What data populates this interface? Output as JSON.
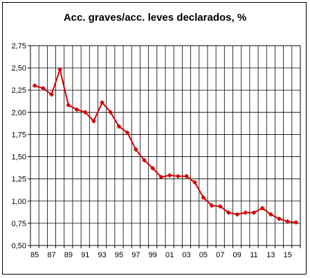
{
  "chart_data": {
    "type": "line",
    "title": "Acc. graves/acc. leves declarados, %",
    "xlabel": "",
    "ylabel": "",
    "grid": true,
    "ylim": [
      0.5,
      2.75
    ],
    "yticks": [
      0.5,
      0.75,
      1.0,
      1.25,
      1.5,
      1.75,
      2.0,
      2.25,
      2.5,
      2.75
    ],
    "ytick_labels": [
      "0,50",
      "0,75",
      "1,00",
      "1,25",
      "1,50",
      "1,75",
      "2,00",
      "2,25",
      "2,50",
      "2,75"
    ],
    "x_tick_labels": [
      "85",
      "87",
      "89",
      "91",
      "93",
      "95",
      "97",
      "99",
      "01",
      "03",
      "05",
      "07",
      "09",
      "11",
      "13",
      "15"
    ],
    "series_color": "#d40000",
    "series": [
      {
        "values": [
          2.3,
          2.27,
          2.2,
          2.48,
          2.08,
          2.03,
          2.0,
          1.9,
          2.11,
          2.0,
          1.84,
          1.77,
          1.58,
          1.46,
          1.37,
          1.27,
          1.29,
          1.28,
          1.28,
          1.21,
          1.04,
          0.95,
          0.94,
          0.87,
          0.85,
          0.87,
          0.87,
          0.92,
          0.85,
          0.8,
          0.77,
          0.76
        ]
      }
    ]
  }
}
